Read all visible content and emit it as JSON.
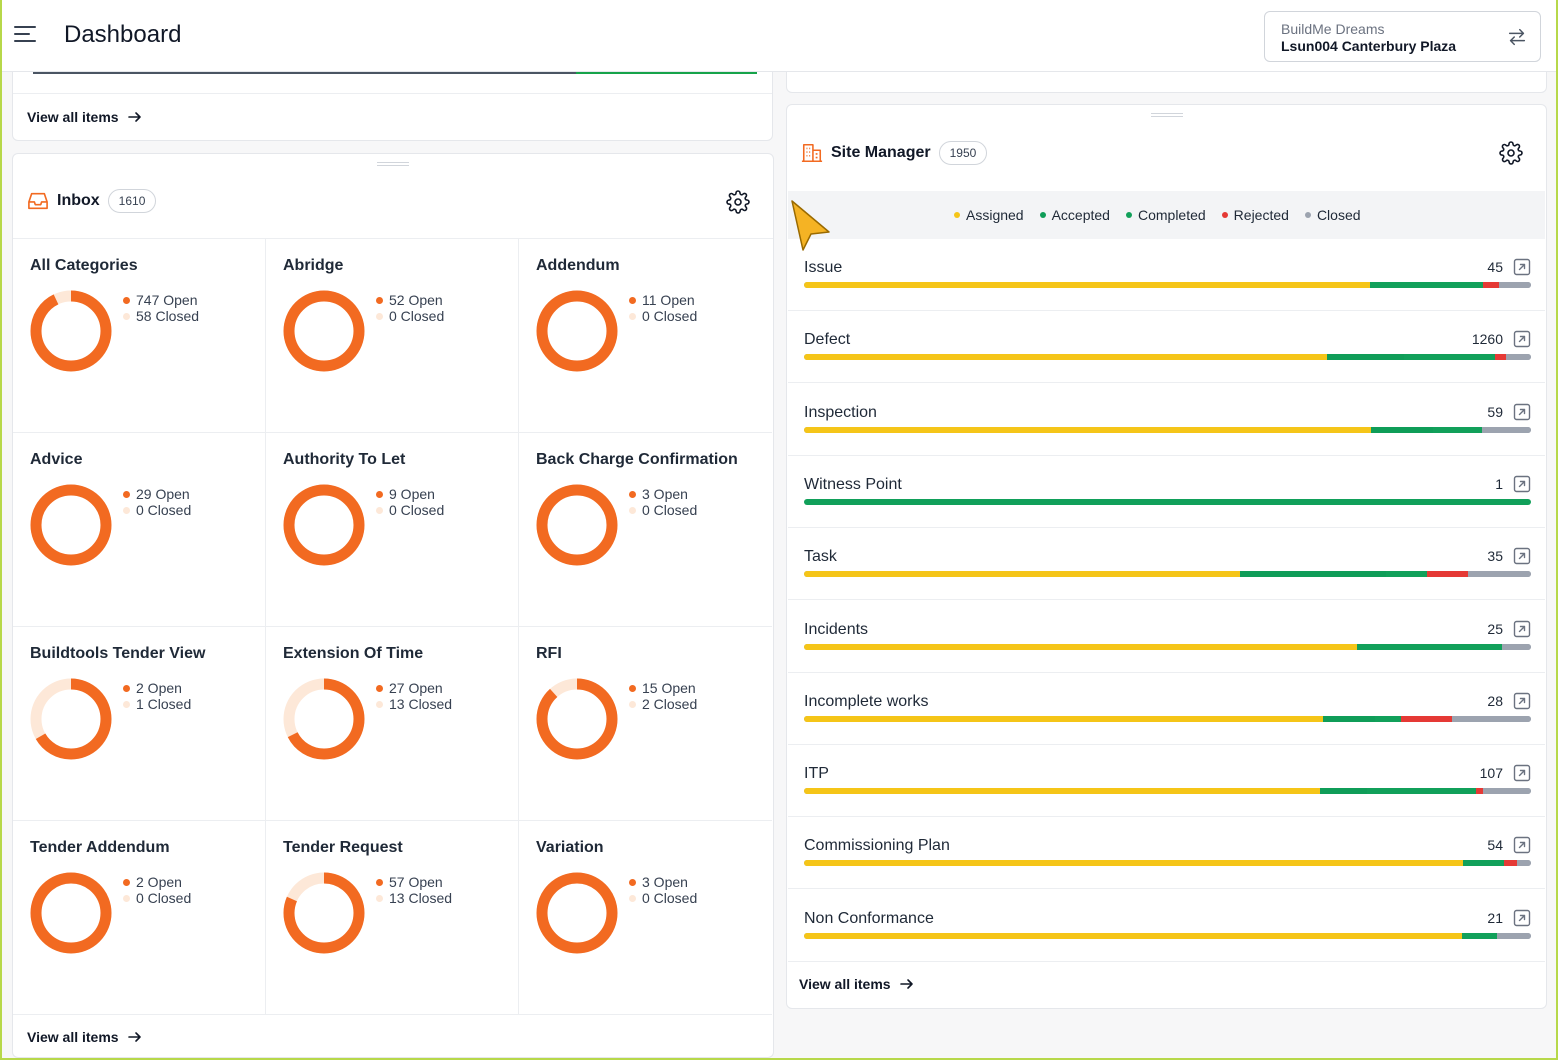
{
  "header": {
    "title": "Dashboard",
    "project_org": "BuildMe Dreams",
    "project_name": "Lsun004 Canterbury Plaza"
  },
  "top_left_stub": {
    "view_all": "View all items"
  },
  "inbox": {
    "title": "Inbox",
    "count": "1610",
    "open_color": "#f26a21",
    "closed_color": "#fde8d8",
    "view_all": "View all items",
    "categories": [
      {
        "name": "All Categories",
        "open": 747,
        "closed": 58,
        "open_label": "747 Open",
        "closed_label": "58 Closed"
      },
      {
        "name": "Abridge",
        "open": 52,
        "closed": 0,
        "open_label": "52 Open",
        "closed_label": "0 Closed"
      },
      {
        "name": "Addendum",
        "open": 11,
        "closed": 0,
        "open_label": "11 Open",
        "closed_label": "0 Closed"
      },
      {
        "name": "Advice",
        "open": 29,
        "closed": 0,
        "open_label": "29 Open",
        "closed_label": "0 Closed"
      },
      {
        "name": "Authority To Let",
        "open": 9,
        "closed": 0,
        "open_label": "9 Open",
        "closed_label": "0 Closed"
      },
      {
        "name": "Back Charge Confirmation",
        "open": 3,
        "closed": 0,
        "open_label": "3 Open",
        "closed_label": "0 Closed"
      },
      {
        "name": "Buildtools Tender View",
        "open": 2,
        "closed": 1,
        "open_label": "2 Open",
        "closed_label": "1 Closed"
      },
      {
        "name": "Extension Of Time",
        "open": 27,
        "closed": 13,
        "open_label": "27 Open",
        "closed_label": "13 Closed"
      },
      {
        "name": "RFI",
        "open": 15,
        "closed": 2,
        "open_label": "15 Open",
        "closed_label": "2 Closed"
      },
      {
        "name": "Tender Addendum",
        "open": 2,
        "closed": 0,
        "open_label": "2 Open",
        "closed_label": "0 Closed"
      },
      {
        "name": "Tender Request",
        "open": 57,
        "closed": 13,
        "open_label": "57 Open",
        "closed_label": "13 Closed"
      },
      {
        "name": "Variation",
        "open": 3,
        "closed": 0,
        "open_label": "3 Open",
        "closed_label": "0 Closed"
      }
    ]
  },
  "site_manager": {
    "title": "Site Manager",
    "count": "1950",
    "view_all": "View all items",
    "statuses": [
      {
        "label": "Assigned",
        "color": "#f5c518"
      },
      {
        "label": "Accepted",
        "color": "#0f9d58"
      },
      {
        "label": "Completed",
        "color": "#11a05a"
      },
      {
        "label": "Rejected",
        "color": "#e53935"
      },
      {
        "label": "Closed",
        "color": "#9ca3af"
      }
    ],
    "rows": [
      {
        "label": "Issue",
        "count": "45",
        "fractions": [
          0.778,
          0.0,
          0.156,
          0.022,
          0.044
        ]
      },
      {
        "label": "Defect",
        "count": "1260",
        "fractions": [
          0.719,
          0.106,
          0.125,
          0.015,
          0.035
        ]
      },
      {
        "label": "Inspection",
        "count": "59",
        "fractions": [
          0.78,
          0.085,
          0.068,
          0.0,
          0.067
        ]
      },
      {
        "label": "Witness Point",
        "count": "1",
        "fractions": [
          0.0,
          0.0,
          1.0,
          0.0,
          0.0
        ]
      },
      {
        "label": "Task",
        "count": "35",
        "fractions": [
          0.6,
          0.2,
          0.057,
          0.057,
          0.086
        ]
      },
      {
        "label": "Incidents",
        "count": "25",
        "fractions": [
          0.76,
          0.0,
          0.2,
          0.0,
          0.04
        ]
      },
      {
        "label": "Incomplete works",
        "count": "28",
        "fractions": [
          0.714,
          0.071,
          0.036,
          0.071,
          0.108
        ]
      },
      {
        "label": "ITP",
        "count": "107",
        "fractions": [
          0.71,
          0.065,
          0.15,
          0.009,
          0.066
        ]
      },
      {
        "label": "Commissioning Plan",
        "count": "54",
        "fractions": [
          0.907,
          0.0,
          0.056,
          0.018,
          0.019
        ]
      },
      {
        "label": "Non Conformance",
        "count": "21",
        "fractions": [
          0.905,
          0.0,
          0.048,
          0.0,
          0.047
        ]
      }
    ]
  }
}
